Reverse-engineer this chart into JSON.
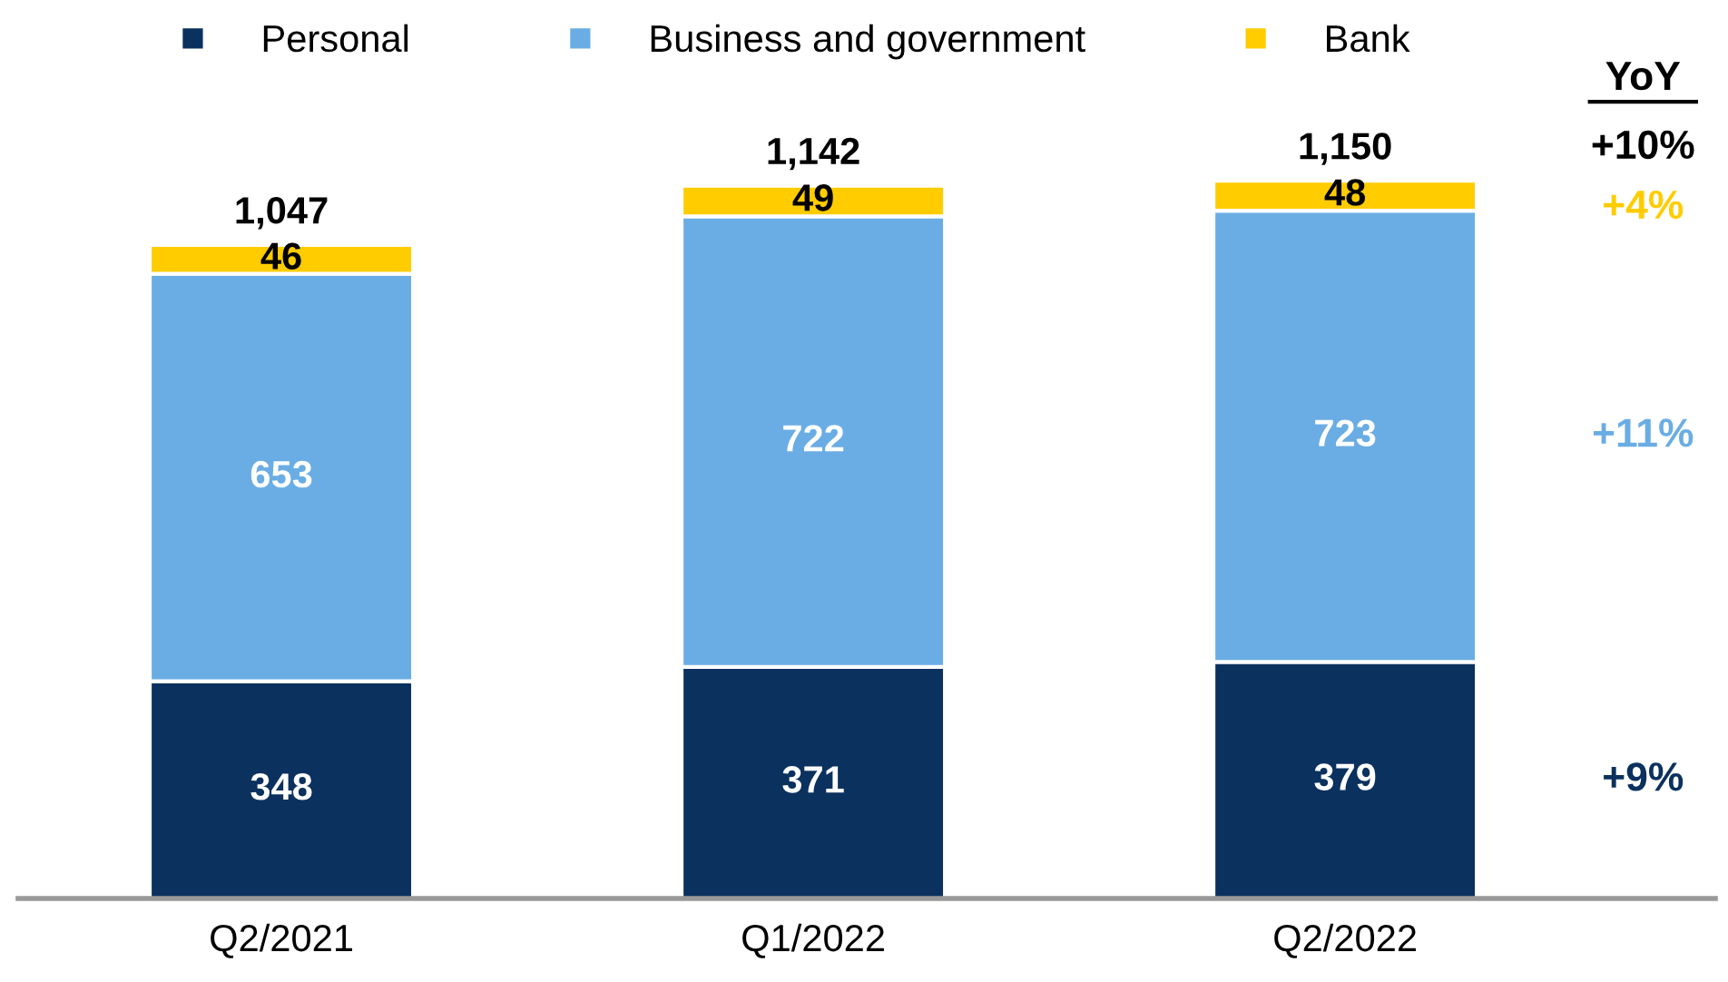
{
  "chart_data": {
    "type": "bar",
    "stacked": true,
    "categories": [
      "Q2/2021",
      "Q1/2022",
      "Q2/2022"
    ],
    "series": [
      {
        "name": "Personal",
        "color": "#0b315e",
        "values": [
          348,
          371,
          379
        ]
      },
      {
        "name": "Business and government",
        "color": "#6aade4",
        "values": [
          653,
          722,
          723
        ]
      },
      {
        "name": "Bank",
        "color": "#ffcc00",
        "values": [
          46,
          49,
          48
        ]
      }
    ],
    "data_labels": true,
    "totals": [
      "1,047",
      "1,142",
      "1,150"
    ],
    "legend": "top",
    "annotations": [
      "YoY",
      "+10%",
      "+4%",
      "+11%",
      "+9%"
    ]
  }
}
